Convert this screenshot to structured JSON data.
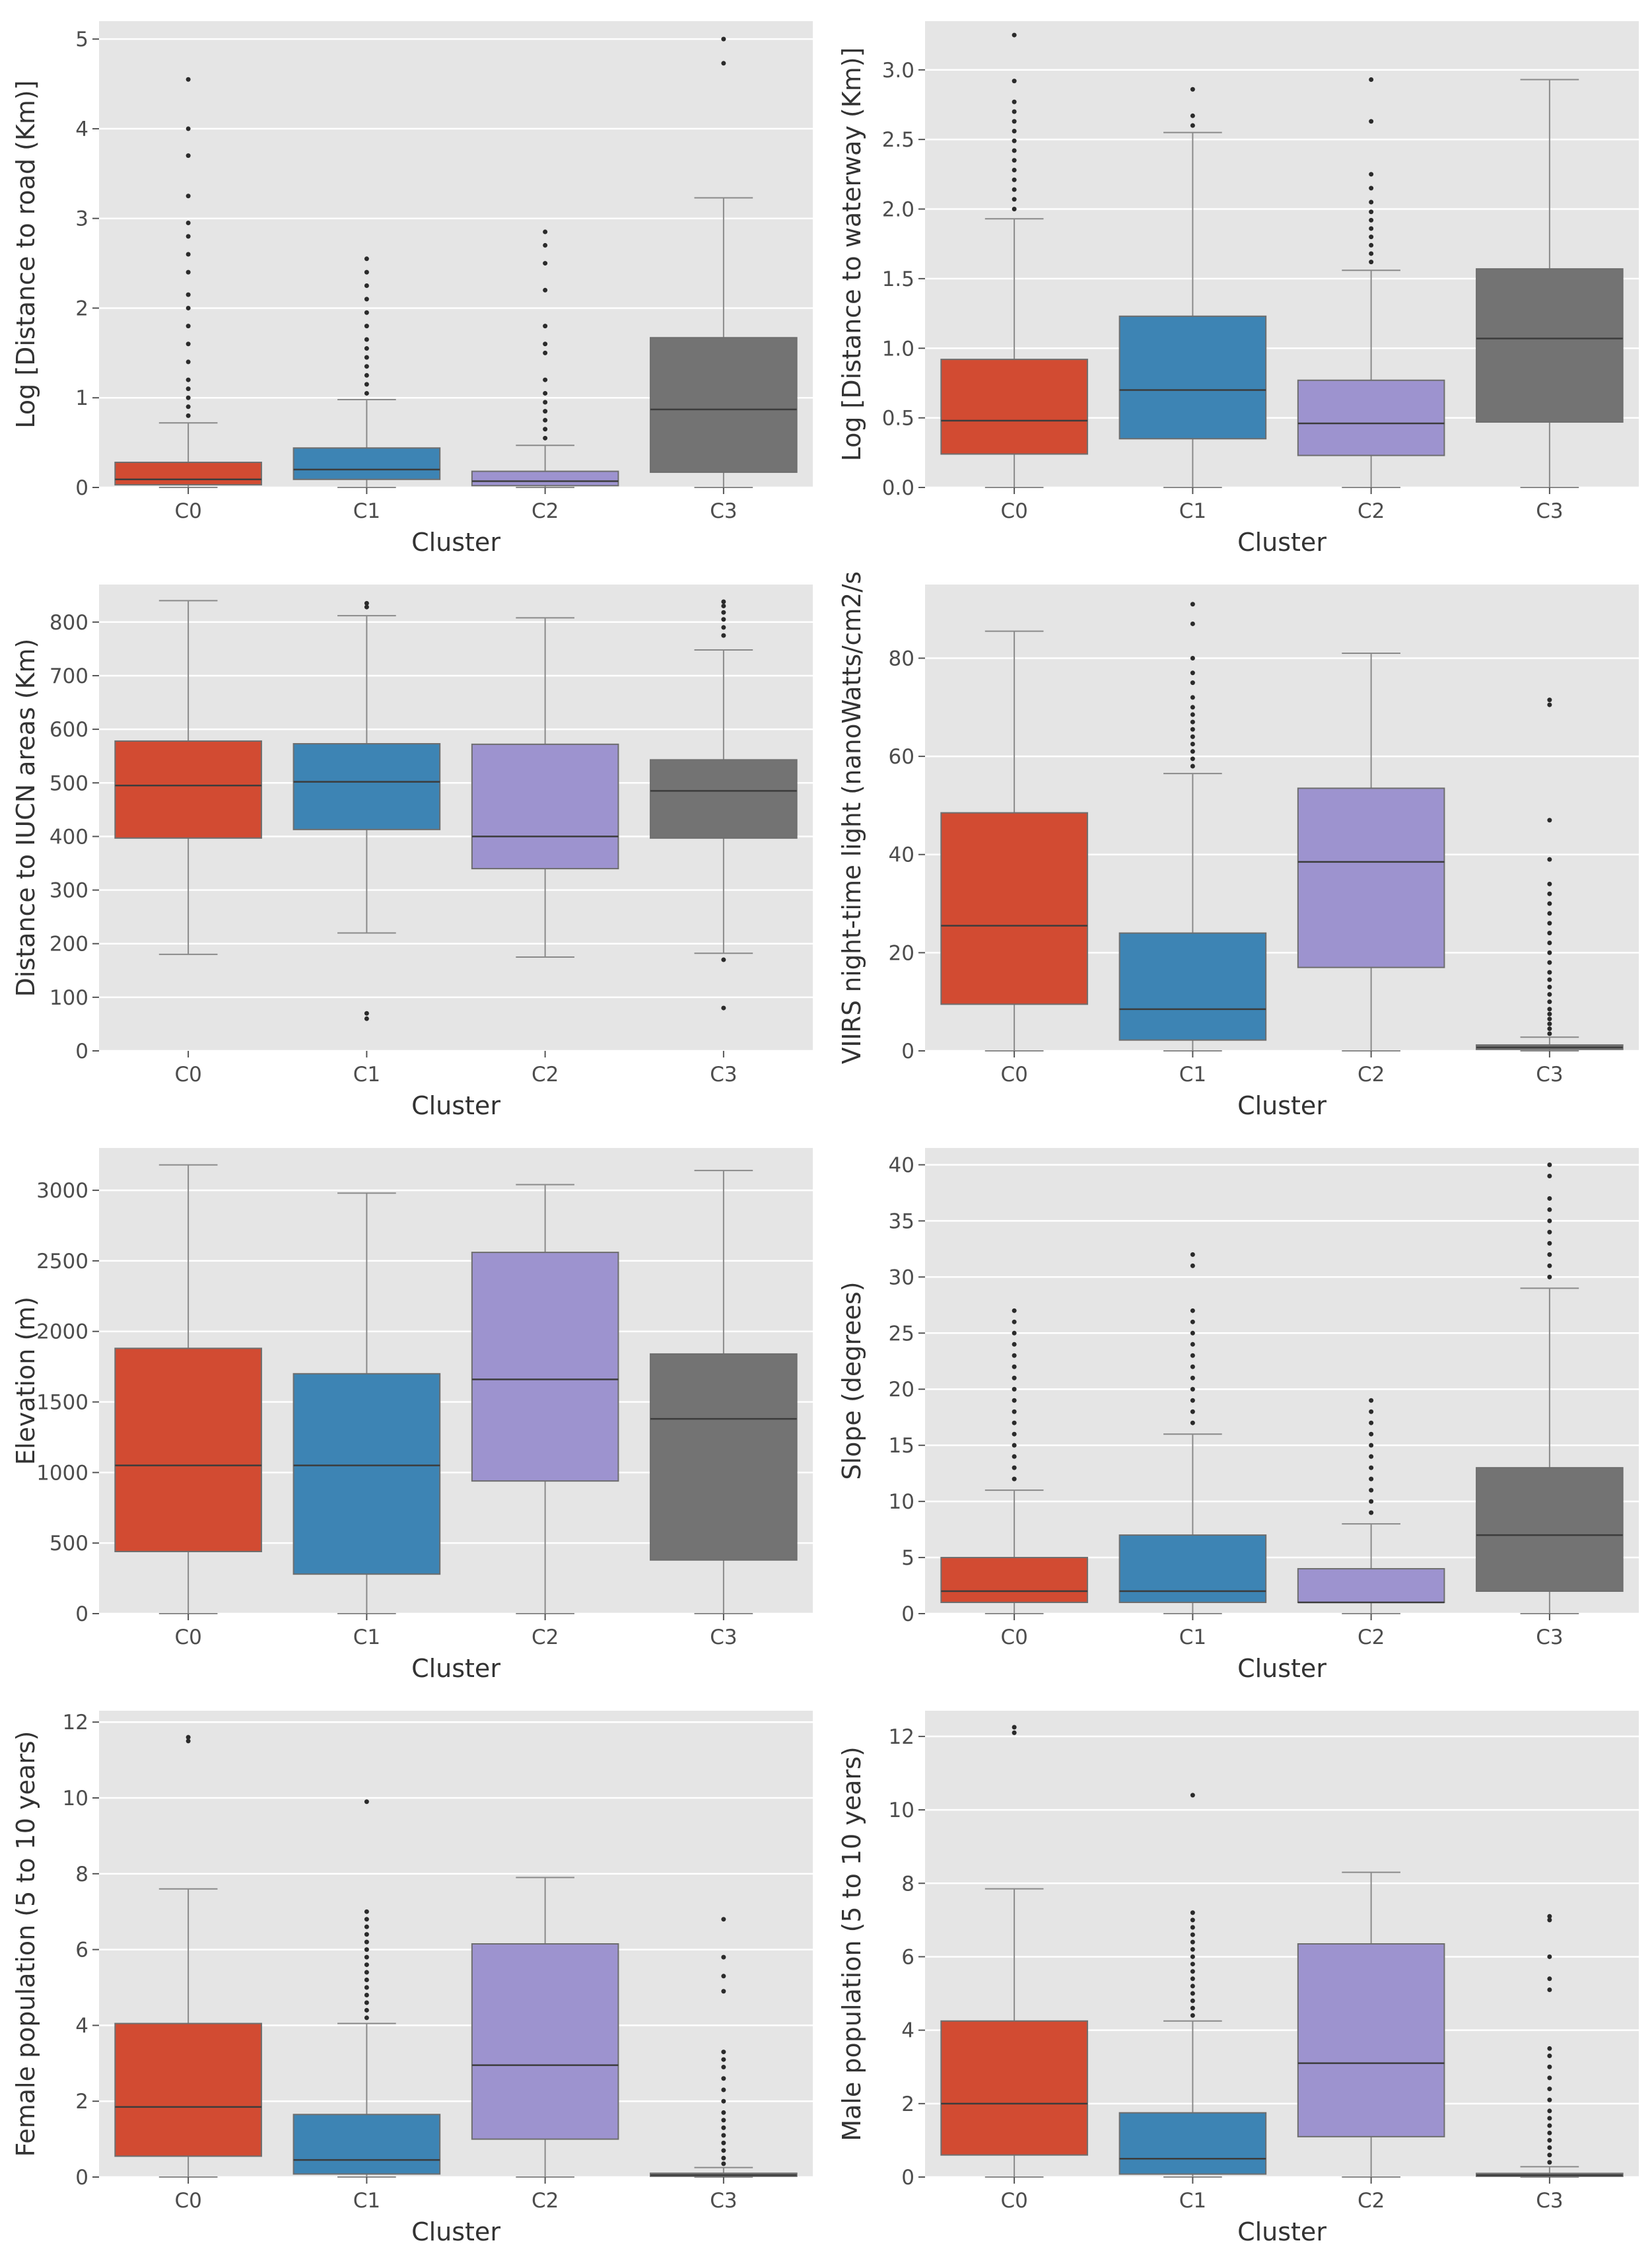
{
  "colors": {
    "panel_bg": "#e5e5e5",
    "grid": "#ffffff",
    "whisker": "#8a8a8a",
    "outlier": "#2b2b2b",
    "C0": "#d24b32",
    "C1": "#3d84b4",
    "C2": "#9d93cf",
    "C3": "#737373"
  },
  "chart_data": [
    {
      "type": "box",
      "id": "road",
      "xlabel": "Cluster",
      "ylabel": "Log [Distance to road (Km)]",
      "ylim": [
        0,
        5.2
      ],
      "yticks": [
        0,
        1,
        2,
        3,
        4,
        5
      ],
      "categories": [
        "C0",
        "C1",
        "C2",
        "C3"
      ],
      "boxes": [
        {
          "whislo": 0.0,
          "q1": 0.03,
          "med": 0.09,
          "q3": 0.28,
          "whishi": 0.72,
          "fliers": [
            0.8,
            0.9,
            1.0,
            1.1,
            1.2,
            1.4,
            1.6,
            1.8,
            2.0,
            2.15,
            2.4,
            2.6,
            2.8,
            2.95,
            3.25,
            3.7,
            4.0,
            4.55
          ]
        },
        {
          "whislo": 0.0,
          "q1": 0.09,
          "med": 0.2,
          "q3": 0.44,
          "whishi": 0.98,
          "fliers": [
            1.05,
            1.15,
            1.25,
            1.35,
            1.45,
            1.55,
            1.65,
            1.8,
            1.95,
            2.1,
            2.25,
            2.4,
            2.55
          ]
        },
        {
          "whislo": 0.0,
          "q1": 0.02,
          "med": 0.07,
          "q3": 0.18,
          "whishi": 0.47,
          "fliers": [
            0.55,
            0.65,
            0.75,
            0.85,
            0.95,
            1.05,
            1.2,
            1.5,
            1.6,
            1.8,
            2.2,
            2.5,
            2.7,
            2.85
          ]
        },
        {
          "whislo": 0.0,
          "q1": 0.17,
          "med": 0.87,
          "q3": 1.67,
          "whishi": 3.23,
          "fliers": [
            4.73,
            5.0
          ]
        }
      ]
    },
    {
      "type": "box",
      "id": "waterway",
      "xlabel": "Cluster",
      "ylabel": "Log [Distance to waterway (Km)]",
      "ylim": [
        0,
        3.35
      ],
      "yticks": [
        0.0,
        0.5,
        1.0,
        1.5,
        2.0,
        2.5,
        3.0
      ],
      "ytick_labels": [
        "0.0",
        "0.5",
        "1.0",
        "1.5",
        "2.0",
        "2.5",
        "3.0"
      ],
      "categories": [
        "C0",
        "C1",
        "C2",
        "C3"
      ],
      "boxes": [
        {
          "whislo": 0.0,
          "q1": 0.24,
          "med": 0.48,
          "q3": 0.92,
          "whishi": 1.93,
          "fliers": [
            2.0,
            2.07,
            2.14,
            2.21,
            2.28,
            2.35,
            2.42,
            2.49,
            2.56,
            2.63,
            2.7,
            2.77,
            2.92,
            3.25
          ]
        },
        {
          "whislo": 0.0,
          "q1": 0.35,
          "med": 0.7,
          "q3": 1.23,
          "whishi": 2.55,
          "fliers": [
            2.6,
            2.67,
            2.86
          ]
        },
        {
          "whislo": 0.0,
          "q1": 0.23,
          "med": 0.46,
          "q3": 0.77,
          "whishi": 1.56,
          "fliers": [
            1.62,
            1.68,
            1.74,
            1.8,
            1.86,
            1.92,
            1.98,
            2.05,
            2.15,
            2.25,
            2.63,
            2.93
          ]
        },
        {
          "whislo": 0.0,
          "q1": 0.47,
          "med": 1.07,
          "q3": 1.57,
          "whishi": 2.93,
          "fliers": []
        }
      ]
    },
    {
      "type": "box",
      "id": "iucn",
      "xlabel": "Cluster",
      "ylabel": "Distance to IUCN areas (Km)",
      "ylim": [
        0,
        870
      ],
      "yticks": [
        0,
        100,
        200,
        300,
        400,
        500,
        600,
        700,
        800
      ],
      "categories": [
        "C0",
        "C1",
        "C2",
        "C3"
      ],
      "boxes": [
        {
          "whislo": 180,
          "q1": 397,
          "med": 495,
          "q3": 578,
          "whishi": 840,
          "fliers": []
        },
        {
          "whislo": 220,
          "q1": 413,
          "med": 502,
          "q3": 573,
          "whishi": 812,
          "fliers": [
            60,
            70,
            828,
            835
          ]
        },
        {
          "whislo": 175,
          "q1": 340,
          "med": 400,
          "q3": 572,
          "whishi": 808,
          "fliers": []
        },
        {
          "whislo": 182,
          "q1": 397,
          "med": 485,
          "q3": 543,
          "whishi": 748,
          "fliers": [
            80,
            170,
            775,
            790,
            805,
            818,
            830,
            838
          ]
        }
      ]
    },
    {
      "type": "box",
      "id": "viirs",
      "xlabel": "Cluster",
      "ylabel": "VIIRS night-time light (nanoWatts/cm2/s",
      "ylim": [
        0,
        95
      ],
      "yticks": [
        0,
        20,
        40,
        60,
        80
      ],
      "categories": [
        "C0",
        "C1",
        "C2",
        "C3"
      ],
      "boxes": [
        {
          "whislo": 0,
          "q1": 9.5,
          "med": 25.5,
          "q3": 48.5,
          "whishi": 85.5,
          "fliers": []
        },
        {
          "whislo": 0,
          "q1": 2.2,
          "med": 8.5,
          "q3": 24,
          "whishi": 56.5,
          "fliers": [
            58,
            59.5,
            61,
            62.5,
            64,
            65.5,
            67,
            68.5,
            70,
            72,
            75,
            77,
            80,
            87,
            91
          ]
        },
        {
          "whislo": 0,
          "q1": 17,
          "med": 38.5,
          "q3": 53.5,
          "whishi": 81,
          "fliers": []
        },
        {
          "whislo": 0,
          "q1": 0.3,
          "med": 0.7,
          "q3": 1.2,
          "whishi": 2.8,
          "fliers": [
            3.5,
            4.5,
            5.5,
            6.5,
            7.5,
            8.5,
            10,
            11.5,
            13,
            14.5,
            16,
            18,
            20,
            22,
            24,
            26,
            28,
            30,
            32,
            34,
            39,
            47,
            70.5,
            71.5
          ]
        }
      ]
    },
    {
      "type": "box",
      "id": "elevation",
      "xlabel": "Cluster",
      "ylabel": "Elevation (m)",
      "ylim": [
        0,
        3300
      ],
      "yticks": [
        0,
        500,
        1000,
        1500,
        2000,
        2500,
        3000
      ],
      "categories": [
        "C0",
        "C1",
        "C2",
        "C3"
      ],
      "boxes": [
        {
          "whislo": 0,
          "q1": 440,
          "med": 1050,
          "q3": 1880,
          "whishi": 3180,
          "fliers": []
        },
        {
          "whislo": 0,
          "q1": 280,
          "med": 1050,
          "q3": 1700,
          "whishi": 2980,
          "fliers": []
        },
        {
          "whislo": 0,
          "q1": 940,
          "med": 1660,
          "q3": 2560,
          "whishi": 3040,
          "fliers": []
        },
        {
          "whislo": 0,
          "q1": 380,
          "med": 1380,
          "q3": 1840,
          "whishi": 3140,
          "fliers": []
        }
      ]
    },
    {
      "type": "box",
      "id": "slope",
      "xlabel": "Cluster",
      "ylabel": "Slope (degrees)",
      "ylim": [
        0,
        41.5
      ],
      "yticks": [
        0,
        5,
        10,
        15,
        20,
        25,
        30,
        35,
        40
      ],
      "categories": [
        "C0",
        "C1",
        "C2",
        "C3"
      ],
      "boxes": [
        {
          "whislo": 0,
          "q1": 1,
          "med": 2,
          "q3": 5,
          "whishi": 11,
          "fliers": [
            12,
            13,
            14,
            15,
            16,
            17,
            18,
            19,
            20,
            21,
            22,
            23,
            24,
            25,
            26,
            27
          ]
        },
        {
          "whislo": 0,
          "q1": 1,
          "med": 2,
          "q3": 7,
          "whishi": 16,
          "fliers": [
            17,
            18,
            19,
            20,
            21,
            22,
            23,
            24,
            25,
            26,
            27,
            31,
            32
          ]
        },
        {
          "whislo": 0,
          "q1": 1,
          "med": 1,
          "q3": 4,
          "whishi": 8,
          "fliers": [
            9,
            10,
            11,
            12,
            13,
            14,
            15,
            16,
            17,
            18,
            19
          ]
        },
        {
          "whislo": 0,
          "q1": 2,
          "med": 7,
          "q3": 13,
          "whishi": 29,
          "fliers": [
            30,
            31,
            32,
            33,
            34,
            35,
            36,
            37,
            39,
            40
          ]
        }
      ]
    },
    {
      "type": "box",
      "id": "female",
      "xlabel": "Cluster",
      "ylabel": "Female population (5 to 10 years)",
      "ylim": [
        0,
        12.3
      ],
      "yticks": [
        0,
        2,
        4,
        6,
        8,
        10,
        12
      ],
      "categories": [
        "C0",
        "C1",
        "C2",
        "C3"
      ],
      "boxes": [
        {
          "whislo": 0,
          "q1": 0.55,
          "med": 1.85,
          "q3": 4.05,
          "whishi": 7.6,
          "fliers": [
            11.5,
            11.6
          ]
        },
        {
          "whislo": 0,
          "q1": 0.08,
          "med": 0.45,
          "q3": 1.65,
          "whishi": 4.05,
          "fliers": [
            4.2,
            4.4,
            4.6,
            4.8,
            5.0,
            5.2,
            5.4,
            5.6,
            5.8,
            6.0,
            6.2,
            6.4,
            6.6,
            6.8,
            7.0,
            9.9
          ]
        },
        {
          "whislo": 0,
          "q1": 1.0,
          "med": 2.95,
          "q3": 6.15,
          "whishi": 7.9,
          "fliers": []
        },
        {
          "whislo": 0,
          "q1": 0.02,
          "med": 0.05,
          "q3": 0.1,
          "whishi": 0.25,
          "fliers": [
            0.35,
            0.5,
            0.7,
            0.9,
            1.1,
            1.3,
            1.5,
            1.7,
            2.0,
            2.3,
            2.6,
            2.9,
            3.1,
            3.3,
            4.9,
            5.3,
            5.8,
            6.8
          ]
        }
      ]
    },
    {
      "type": "box",
      "id": "male",
      "xlabel": "Cluster",
      "ylabel": "Male population (5 to 10 years)",
      "ylim": [
        0,
        12.7
      ],
      "yticks": [
        0,
        2,
        4,
        6,
        8,
        10,
        12
      ],
      "categories": [
        "C0",
        "C1",
        "C2",
        "C3"
      ],
      "boxes": [
        {
          "whislo": 0,
          "q1": 0.6,
          "med": 2.0,
          "q3": 4.25,
          "whishi": 7.85,
          "fliers": [
            12.1,
            12.25
          ]
        },
        {
          "whislo": 0,
          "q1": 0.08,
          "med": 0.5,
          "q3": 1.75,
          "whishi": 4.25,
          "fliers": [
            4.4,
            4.6,
            4.8,
            5.0,
            5.2,
            5.4,
            5.6,
            5.8,
            6.0,
            6.2,
            6.4,
            6.6,
            6.8,
            7.0,
            7.2,
            10.4
          ]
        },
        {
          "whislo": 0,
          "q1": 1.1,
          "med": 3.1,
          "q3": 6.35,
          "whishi": 8.3,
          "fliers": []
        },
        {
          "whislo": 0,
          "q1": 0.02,
          "med": 0.05,
          "q3": 0.1,
          "whishi": 0.28,
          "fliers": [
            0.4,
            0.6,
            0.8,
            1.0,
            1.2,
            1.4,
            1.6,
            1.8,
            2.1,
            2.4,
            2.7,
            3.0,
            3.3,
            3.5,
            5.1,
            5.4,
            6.0,
            7.0,
            7.1
          ]
        }
      ]
    }
  ]
}
